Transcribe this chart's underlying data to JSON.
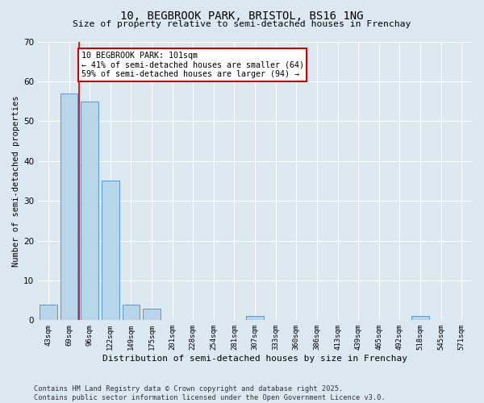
{
  "title1": "10, BEGBROOK PARK, BRISTOL, BS16 1NG",
  "title2": "Size of property relative to semi-detached houses in Frenchay",
  "xlabel": "Distribution of semi-detached houses by size in Frenchay",
  "ylabel": "Number of semi-detached properties",
  "bins": [
    "43sqm",
    "69sqm",
    "96sqm",
    "122sqm",
    "149sqm",
    "175sqm",
    "201sqm",
    "228sqm",
    "254sqm",
    "281sqm",
    "307sqm",
    "333sqm",
    "360sqm",
    "386sqm",
    "413sqm",
    "439sqm",
    "465sqm",
    "492sqm",
    "518sqm",
    "545sqm",
    "571sqm"
  ],
  "values": [
    4,
    57,
    55,
    35,
    4,
    3,
    0,
    0,
    0,
    0,
    1,
    0,
    0,
    0,
    0,
    0,
    0,
    0,
    1,
    0,
    0
  ],
  "bar_color": "#b8d4e8",
  "bar_edge_color": "#5599cc",
  "red_line_x": 1.5,
  "red_line_color": "#cc0000",
  "annotation_text": "10 BEGBROOK PARK: 101sqm\n← 41% of semi-detached houses are smaller (64)\n59% of semi-detached houses are larger (94) →",
  "annotation_box_color": "#ffffff",
  "annotation_box_edge": "#cc0000",
  "ylim": [
    0,
    70
  ],
  "yticks": [
    0,
    10,
    20,
    30,
    40,
    50,
    60,
    70
  ],
  "bg_color": "#dce8f0",
  "plot_bg_color": "#dce8f0",
  "grid_color": "#ffffff",
  "footnote": "Contains HM Land Registry data © Crown copyright and database right 2025.\nContains public sector information licensed under the Open Government Licence v3.0."
}
